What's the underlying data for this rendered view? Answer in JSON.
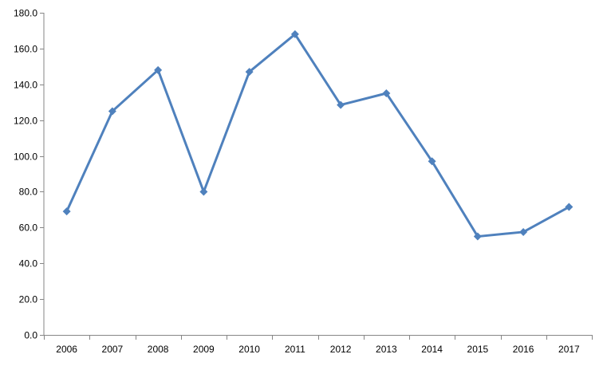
{
  "chart_data": {
    "type": "line",
    "title": "",
    "xlabel": "",
    "ylabel": "",
    "categories": [
      "2006",
      "2007",
      "2008",
      "2009",
      "2010",
      "2011",
      "2012",
      "2013",
      "2014",
      "2015",
      "2016",
      "2017"
    ],
    "series": [
      {
        "values": [
          69.0,
          125.0,
          148.0,
          80.0,
          147.0,
          168.0,
          128.5,
          135.0,
          97.0,
          55.0,
          57.5,
          71.5
        ],
        "color": "#4f81bd",
        "marker": "diamond"
      }
    ],
    "ylim": [
      0,
      180
    ],
    "yticks": [
      "0.0",
      "20.0",
      "40.0",
      "60.0",
      "80.0",
      "100.0",
      "120.0",
      "140.0",
      "160.0",
      "180.0"
    ],
    "grid": false,
    "legend": "none"
  },
  "colors": {
    "axis": "#868686",
    "series": "#4f81bd"
  }
}
